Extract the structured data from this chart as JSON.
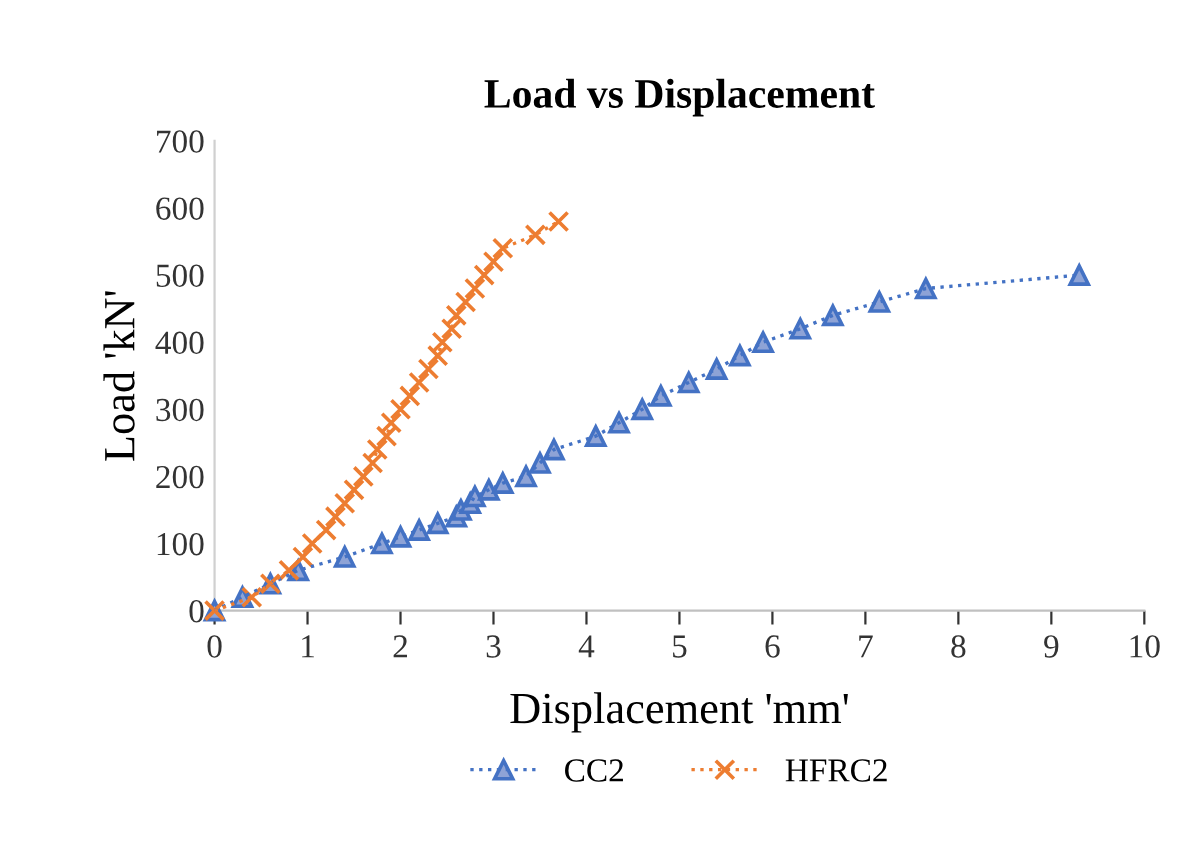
{
  "chart_data": {
    "type": "line",
    "title": "Load vs Displacement",
    "xlabel": "Displacement 'mm'",
    "ylabel": "Load 'kN'",
    "xlim": [
      0,
      10
    ],
    "xticks": [
      0,
      1,
      2,
      3,
      4,
      5,
      6,
      7,
      8,
      9,
      10
    ],
    "ylim": [
      0,
      700
    ],
    "yticks": [
      0,
      100,
      200,
      300,
      400,
      500,
      600,
      700
    ],
    "grid": false,
    "legend": "bottom",
    "line_style": "dotted",
    "series": [
      {
        "name": "CC2",
        "color": "#4472c4",
        "marker": "triangle",
        "x": [
          0,
          0.3,
          0.6,
          0.9,
          1.4,
          1.8,
          2.0,
          2.2,
          2.4,
          2.6,
          2.65,
          2.75,
          2.8,
          2.95,
          3.1,
          3.35,
          3.5,
          3.65,
          4.1,
          4.35,
          4.6,
          4.8,
          5.1,
          5.4,
          5.65,
          5.9,
          6.3,
          6.65,
          7.15,
          7.65,
          9.3
        ],
        "values": [
          0,
          20,
          40,
          60,
          80,
          100,
          110,
          120,
          130,
          140,
          150,
          160,
          170,
          180,
          190,
          200,
          220,
          240,
          260,
          280,
          300,
          320,
          340,
          360,
          380,
          400,
          420,
          440,
          460,
          480,
          500
        ]
      },
      {
        "name": "HFRC2",
        "color": "#ed7d31",
        "marker": "cross",
        "x": [
          0,
          0.4,
          0.6,
          0.8,
          0.95,
          1.05,
          1.2,
          1.3,
          1.4,
          1.5,
          1.6,
          1.7,
          1.75,
          1.85,
          1.9,
          2.0,
          2.1,
          2.2,
          2.3,
          2.4,
          2.45,
          2.55,
          2.6,
          2.7,
          2.8,
          2.9,
          3.0,
          3.1,
          3.45,
          3.7
        ],
        "values": [
          0,
          20,
          40,
          60,
          80,
          100,
          120,
          140,
          160,
          180,
          200,
          220,
          240,
          260,
          280,
          300,
          320,
          340,
          360,
          380,
          400,
          420,
          440,
          460,
          480,
          500,
          520,
          540,
          560,
          580
        ]
      }
    ]
  }
}
